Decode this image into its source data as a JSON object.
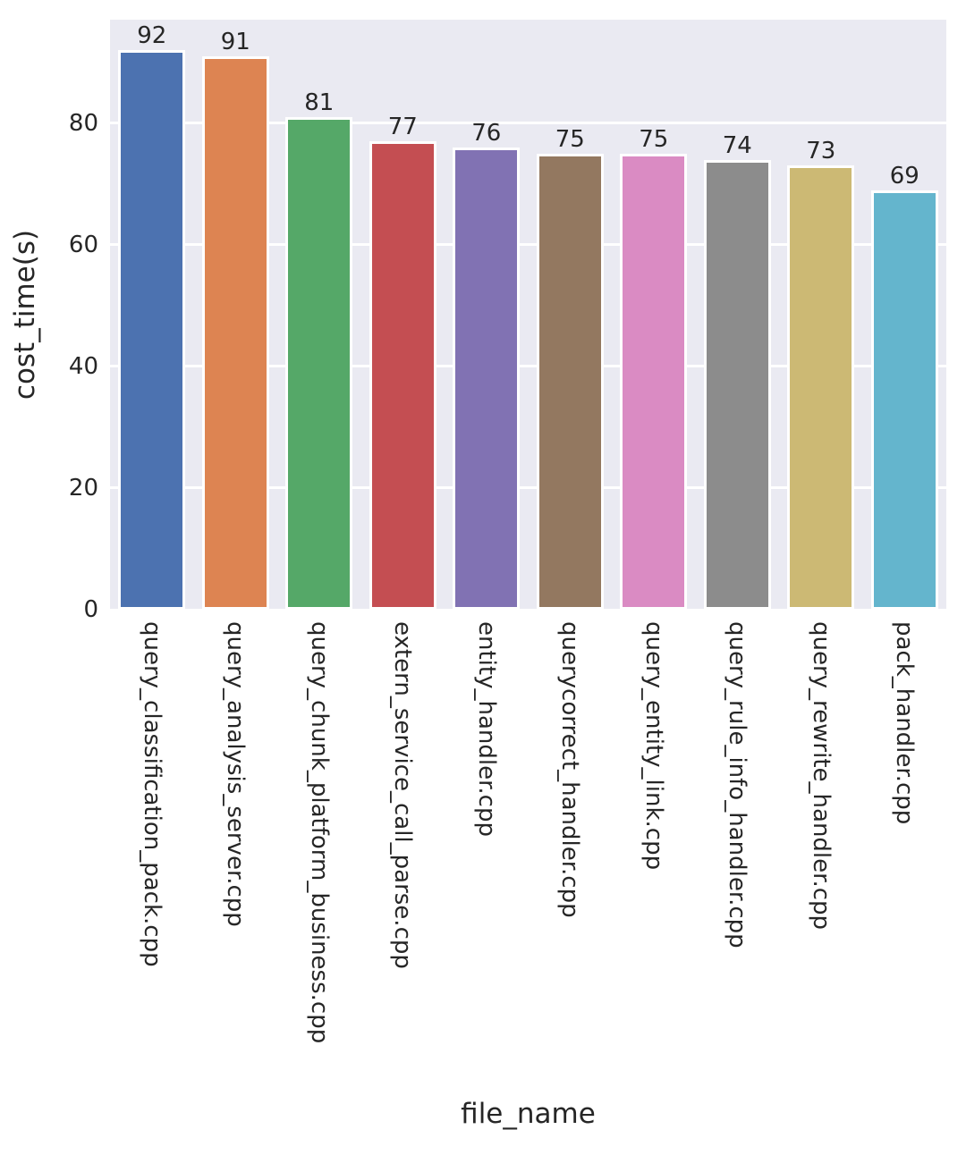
{
  "chart_data": {
    "type": "bar",
    "title": "",
    "xlabel": "file_name",
    "ylabel": "cost_time(s)",
    "categories": [
      "query_classification_pack.cpp",
      "query_analysis_server.cpp",
      "query_chunk_platform_business.cpp",
      "extern_service_call_parse.cpp",
      "entity_handler.cpp",
      "querycorrect_handler.cpp",
      "query_entity_link.cpp",
      "query_rule_info_handler.cpp",
      "query_rewrite_handler.cpp",
      "pack_handler.cpp"
    ],
    "values": [
      92,
      91,
      81,
      77,
      76,
      75,
      75,
      74,
      73,
      69
    ],
    "value_labels": [
      "92",
      "91",
      "81",
      "77",
      "76",
      "75",
      "75",
      "74",
      "73",
      "69"
    ],
    "bar_colors": [
      "#4c72b0",
      "#dd8452",
      "#55a868",
      "#c44e52",
      "#8172b3",
      "#937860",
      "#da8bc3",
      "#8c8c8c",
      "#ccb974",
      "#64b5cd"
    ],
    "yticks": [
      0,
      20,
      40,
      60,
      80
    ],
    "ylim": [
      0,
      97
    ],
    "grid": true,
    "legend": "none",
    "plot_bg_color": "#eaeaf2",
    "grid_color": "#ffffff",
    "bar_edge_color": "#ffffff",
    "text_color": "#262626",
    "x_tick_rotation_deg": 90,
    "bar_width_fraction": 0.8
  }
}
